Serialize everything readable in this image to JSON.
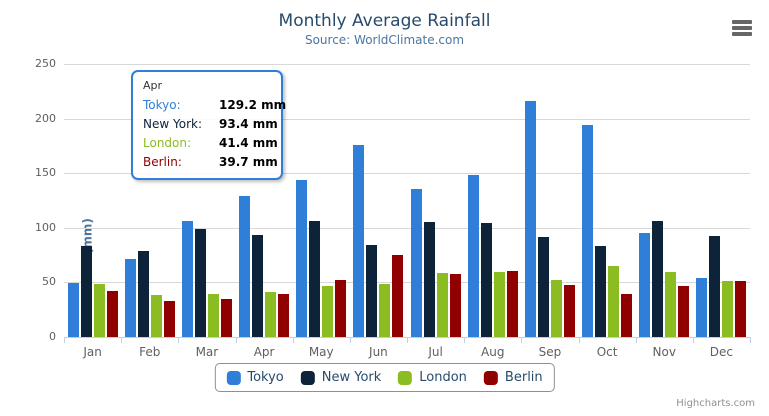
{
  "header": {
    "title": "Monthly Average Rainfall",
    "subtitle": "Source: WorldClimate.com"
  },
  "credits_label": "Highcharts.com",
  "chart_data": {
    "type": "bar",
    "orientation": "vertical",
    "title": "Monthly Average Rainfall",
    "subtitle": "Source: WorldClimate.com",
    "categories": [
      "Jan",
      "Feb",
      "Mar",
      "Apr",
      "May",
      "Jun",
      "Jul",
      "Aug",
      "Sep",
      "Oct",
      "Nov",
      "Dec"
    ],
    "series": [
      {
        "name": "Tokyo",
        "color": "#2f7ed8",
        "values": [
          49.9,
          71.5,
          106.4,
          129.2,
          144.0,
          176.0,
          135.6,
          148.5,
          216.4,
          194.1,
          95.6,
          54.4
        ]
      },
      {
        "name": "New York",
        "color": "#0d233a",
        "values": [
          83.6,
          78.8,
          98.5,
          93.4,
          106.0,
          84.5,
          105.0,
          104.3,
          91.2,
          83.5,
          106.6,
          92.3
        ]
      },
      {
        "name": "London",
        "color": "#8bbc21",
        "values": [
          48.9,
          38.8,
          39.3,
          41.4,
          47.0,
          48.3,
          59.0,
          59.6,
          52.4,
          65.2,
          59.3,
          51.2
        ]
      },
      {
        "name": "Berlin",
        "color": "#910000",
        "values": [
          42.4,
          33.2,
          34.5,
          39.7,
          52.6,
          75.5,
          57.4,
          60.4,
          47.6,
          39.1,
          46.8,
          51.1
        ]
      }
    ],
    "xlabel": "",
    "ylabel": "Rainfall (mm)",
    "ylim": [
      0,
      250
    ],
    "yticks": [
      0,
      50,
      100,
      150,
      200,
      250
    ],
    "grid": true,
    "legend_position": "bottom"
  },
  "tooltip": {
    "header": "Apr",
    "rows": [
      {
        "name": "Tokyo:",
        "value": "129.2 mm",
        "color": "#2f7ed8"
      },
      {
        "name": "New York:",
        "value": "93.4 mm",
        "color": "#0d233a"
      },
      {
        "name": "London:",
        "value": "41.4 mm",
        "color": "#8bbc21"
      },
      {
        "name": "Berlin:",
        "value": "39.7 mm",
        "color": "#910000"
      }
    ]
  },
  "colors": {
    "title": "#274b6d",
    "subtitle": "#4d759e",
    "axis_labels": "#606060",
    "gridline": "#d8d8d8",
    "axis_line": "#c0d0e0",
    "legend_text": "#274b6d",
    "tooltip_border": "#2f7ed8",
    "credits": "#909090"
  }
}
